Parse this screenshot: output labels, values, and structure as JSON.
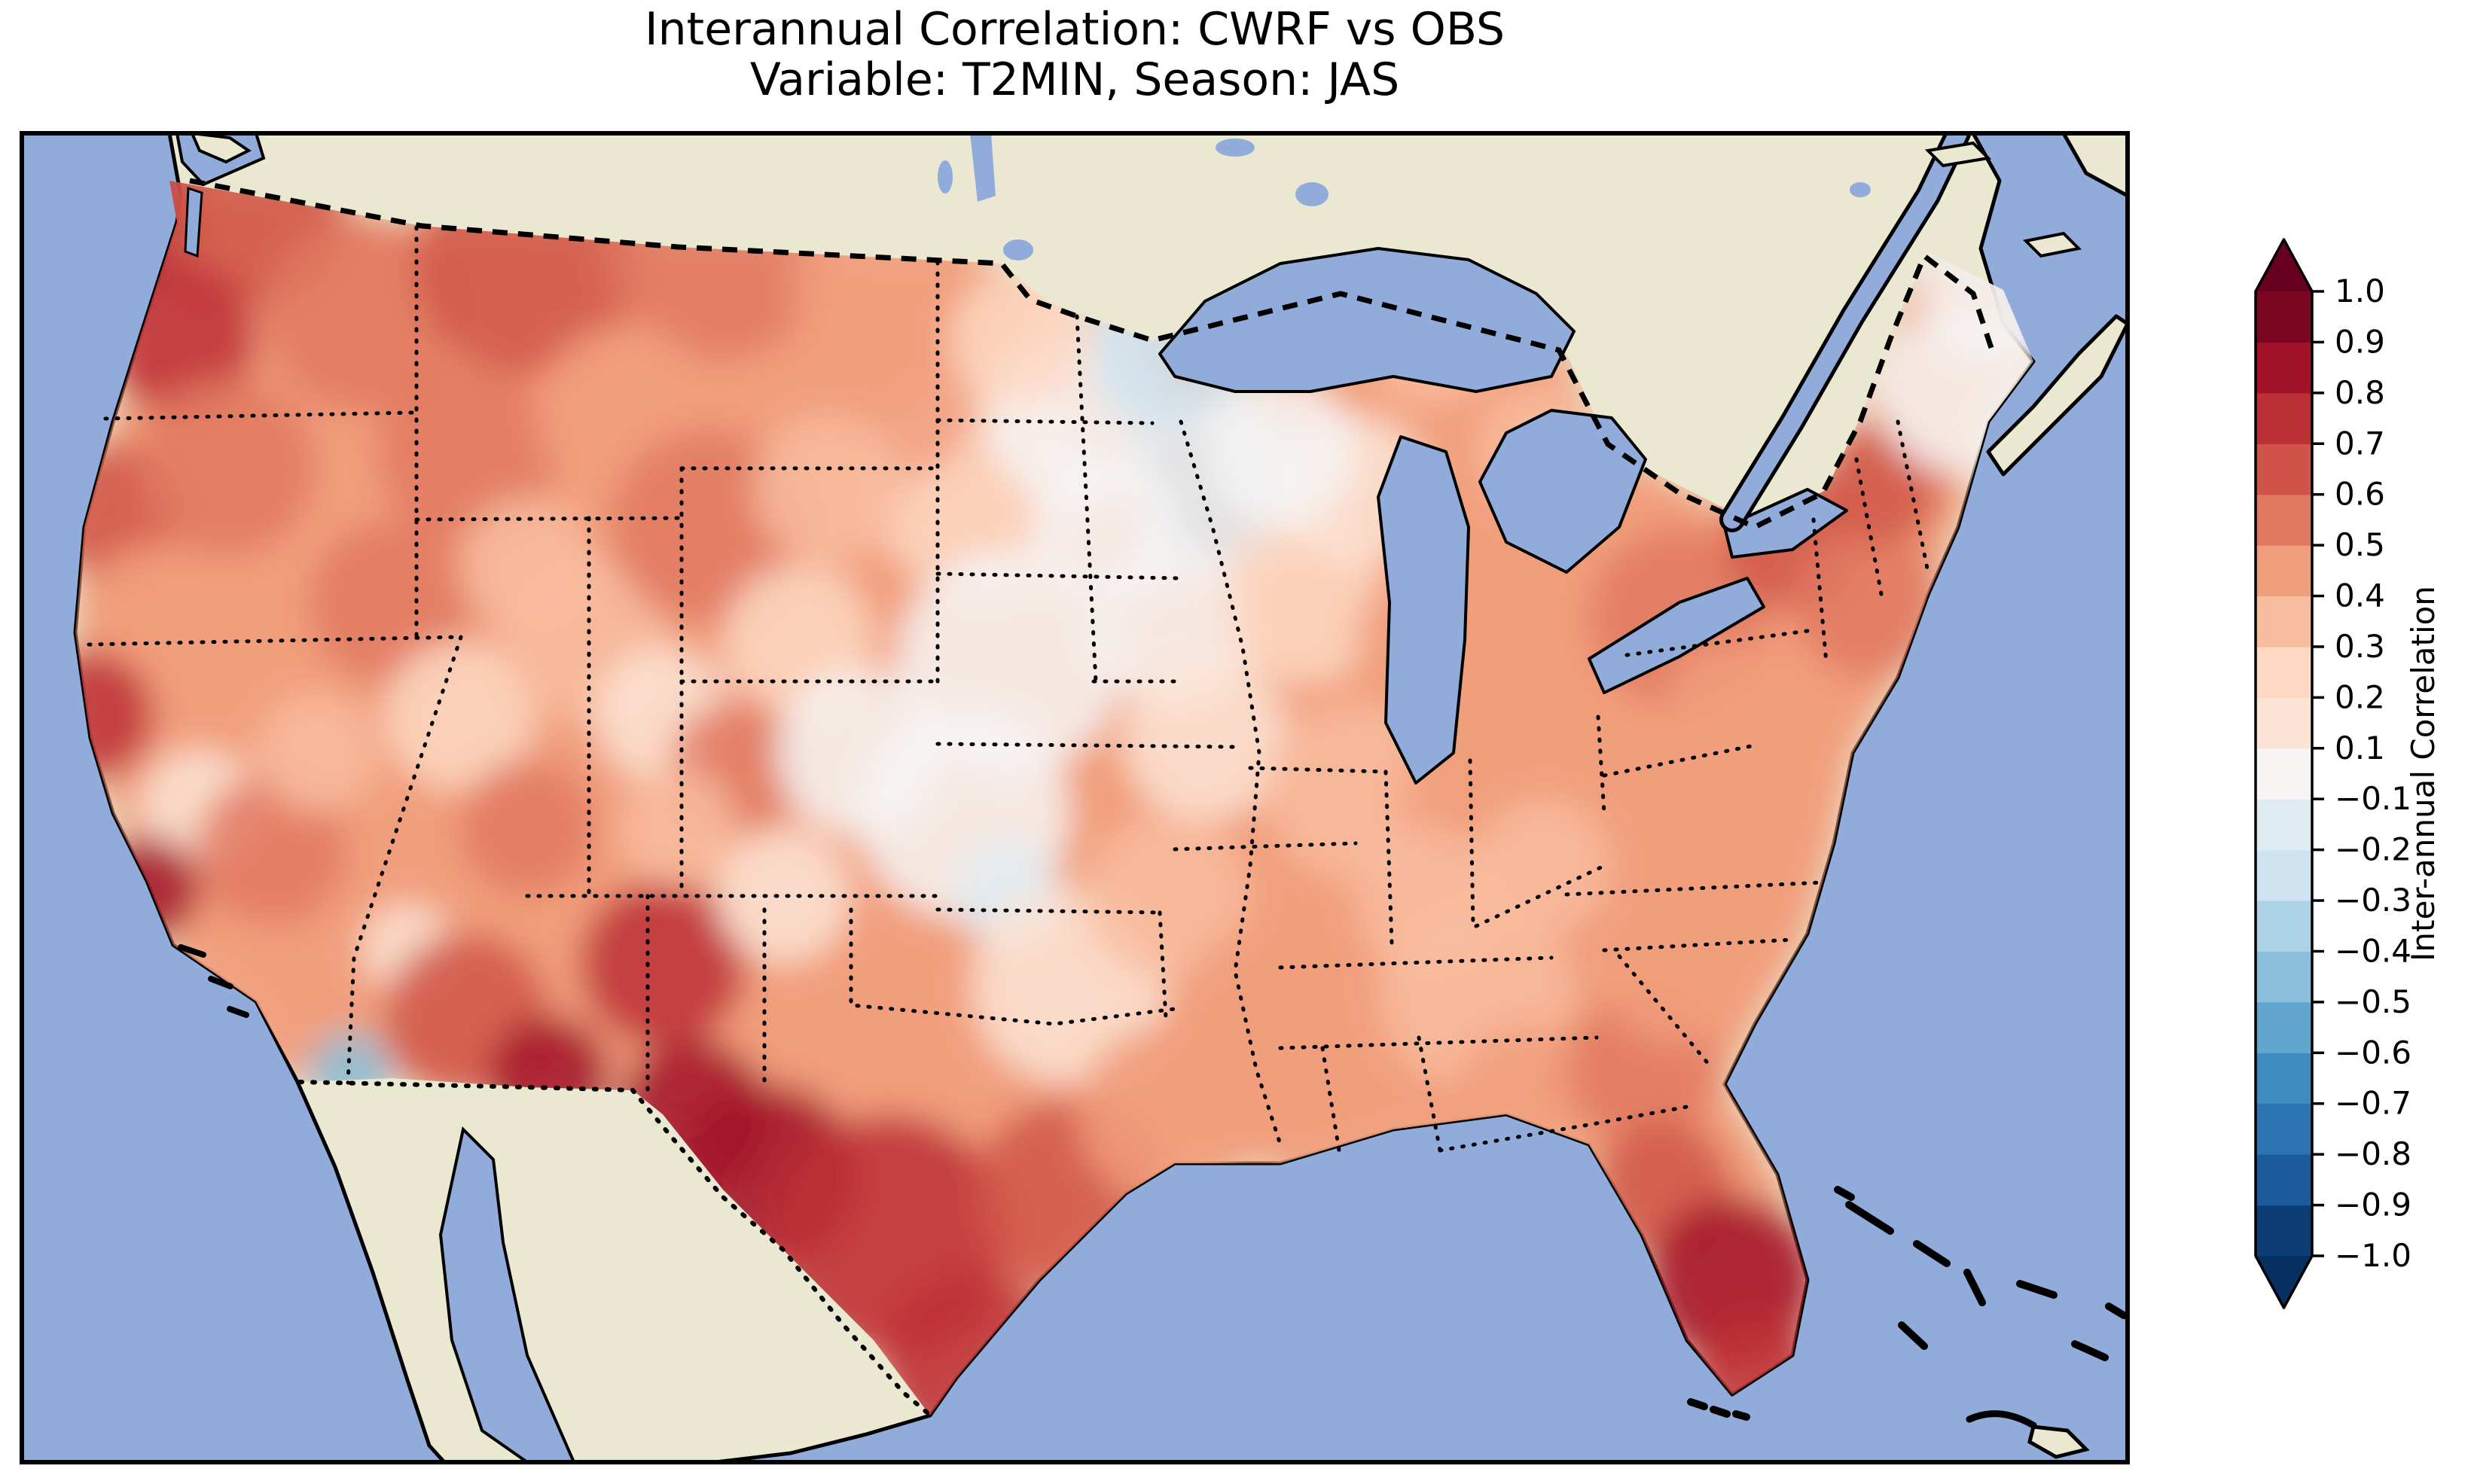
{
  "figure": {
    "title_line1": "Interannual Correlation: CWRF vs OBS",
    "title_line2": "Variable: T2MIN, Season: JAS"
  },
  "colorbar": {
    "label": "Inter-annual Correlation",
    "orientation": "vertical",
    "tick_labels": [
      "1.0",
      "0.9",
      "0.8",
      "0.7",
      "0.6",
      "0.5",
      "0.4",
      "0.3",
      "0.2",
      "0.1",
      "−0.1",
      "−0.2",
      "−0.3",
      "−0.4",
      "−0.5",
      "−0.6",
      "−0.7",
      "−0.8",
      "−0.9",
      "−1.0"
    ],
    "levels": [
      -1.0,
      -0.9,
      -0.8,
      -0.7,
      -0.6,
      -0.5,
      -0.4,
      -0.3,
      -0.2,
      -0.1,
      0.1,
      0.2,
      0.3,
      0.4,
      0.5,
      0.6,
      0.7,
      0.8,
      0.9,
      1.0
    ],
    "segment_colors_low_to_high": [
      "#0c3e75",
      "#1b5b9c",
      "#2c74b3",
      "#3e8cbf",
      "#60a5cd",
      "#8ac0db",
      "#add2e6",
      "#cee3ef",
      "#dfebf2",
      "#f6f5f4",
      "#fbe4d6",
      "#fdd8c3",
      "#f8bc9f",
      "#f19e7c",
      "#e17961",
      "#d05548",
      "#bd2f36",
      "#a21328",
      "#7b0622"
    ],
    "under_color": "#053061",
    "over_color": "#67001f"
  },
  "map": {
    "ocean_color": "#91abdb",
    "land_color": "#eae8d1",
    "coast_color": "#000000",
    "border_styles": {
      "country": "dashed",
      "state": "dotted"
    },
    "field": {
      "variable": "T2MIN",
      "season": "JAS",
      "units": "correlation (-1 to 1)",
      "base_value": 0.4,
      "blobs": [
        [
          165,
          300,
          95,
          0.85
        ],
        [
          330,
          280,
          130,
          0.6
        ],
        [
          240,
          450,
          100,
          0.7
        ],
        [
          150,
          680,
          90,
          0.65
        ],
        [
          300,
          620,
          120,
          0.5
        ],
        [
          480,
          420,
          130,
          0.55
        ],
        [
          700,
          350,
          150,
          0.65
        ],
        [
          950,
          330,
          150,
          0.55
        ],
        [
          1180,
          380,
          130,
          0.4
        ],
        [
          620,
          600,
          120,
          0.5
        ],
        [
          830,
          550,
          120,
          0.45
        ],
        [
          120,
          950,
          85,
          0.7
        ],
        [
          265,
          1075,
          80,
          0.1
        ],
        [
          195,
          1180,
          70,
          0.8
        ],
        [
          360,
          1130,
          100,
          0.55
        ],
        [
          330,
          1330,
          110,
          0.45
        ],
        [
          465,
          1425,
          55,
          -0.45
        ],
        [
          540,
          1260,
          60,
          0.15
        ],
        [
          520,
          800,
          110,
          0.5
        ],
        [
          610,
          950,
          100,
          0.2
        ],
        [
          700,
          1100,
          90,
          0.5
        ],
        [
          780,
          850,
          110,
          0.35
        ],
        [
          880,
          950,
          90,
          0.1
        ],
        [
          620,
          1350,
          110,
          0.6
        ],
        [
          730,
          1430,
          80,
          0.8
        ],
        [
          880,
          1280,
          110,
          0.7
        ],
        [
          920,
          1480,
          100,
          0.8
        ],
        [
          1040,
          1190,
          90,
          0.1
        ],
        [
          940,
          700,
          130,
          0.5
        ],
        [
          1060,
          850,
          100,
          0.2
        ],
        [
          980,
          1020,
          90,
          0.55
        ],
        [
          1140,
          1000,
          110,
          0.05
        ],
        [
          1300,
          640,
          150,
          0.25
        ],
        [
          1180,
          520,
          120,
          0.4
        ],
        [
          1430,
          550,
          120,
          0.05
        ],
        [
          1560,
          470,
          110,
          -0.3
        ],
        [
          1620,
          650,
          120,
          -0.15
        ],
        [
          1560,
          830,
          110,
          -0.05
        ],
        [
          1340,
          880,
          150,
          0.05
        ],
        [
          1280,
          1080,
          140,
          0.05
        ],
        [
          1340,
          1190,
          70,
          -0.15
        ],
        [
          1420,
          1310,
          130,
          0.1
        ],
        [
          1550,
          1190,
          110,
          0.3
        ],
        [
          1020,
          1560,
          120,
          0.85
        ],
        [
          1180,
          1640,
          160,
          0.75
        ],
        [
          1290,
          1810,
          120,
          0.7
        ],
        [
          1420,
          1590,
          130,
          0.6
        ],
        [
          1550,
          1480,
          120,
          0.45
        ],
        [
          1600,
          980,
          110,
          0.15
        ],
        [
          1730,
          800,
          110,
          0.2
        ],
        [
          1800,
          1050,
          120,
          0.35
        ],
        [
          1900,
          850,
          100,
          0.45
        ],
        [
          1990,
          1070,
          130,
          0.4
        ],
        [
          2120,
          950,
          110,
          0.45
        ],
        [
          1700,
          1350,
          130,
          0.4
        ],
        [
          1820,
          1520,
          130,
          0.45
        ],
        [
          1960,
          1320,
          130,
          0.35
        ],
        [
          2040,
          1480,
          120,
          0.45
        ],
        [
          2180,
          1420,
          100,
          0.55
        ],
        [
          2230,
          1280,
          110,
          0.45
        ],
        [
          2210,
          1580,
          90,
          0.65
        ],
        [
          2300,
          1700,
          110,
          0.8
        ],
        [
          2330,
          1820,
          80,
          0.75
        ],
        [
          2160,
          1120,
          110,
          0.4
        ],
        [
          2300,
          1050,
          100,
          0.45
        ],
        [
          2230,
          820,
          120,
          0.5
        ],
        [
          2380,
          720,
          90,
          0.65
        ],
        [
          2300,
          940,
          90,
          0.4
        ],
        [
          2480,
          800,
          100,
          0.5
        ],
        [
          2500,
          640,
          80,
          0.6
        ],
        [
          2600,
          520,
          110,
          0.05
        ],
        [
          2650,
          380,
          100,
          0.0
        ],
        [
          1800,
          650,
          100,
          0.1
        ],
        [
          1700,
          600,
          100,
          0.05
        ],
        [
          1900,
          450,
          90,
          0.3
        ],
        [
          2050,
          600,
          90,
          0.35
        ],
        [
          1470,
          700,
          100,
          -0.1
        ],
        [
          1350,
          450,
          90,
          0.2
        ],
        [
          1100,
          650,
          100,
          0.35
        ],
        [
          900,
          1100,
          80,
          0.3
        ],
        [
          420,
          1000,
          80,
          0.3
        ],
        [
          200,
          800,
          80,
          0.4
        ],
        [
          700,
          750,
          90,
          0.3
        ],
        [
          1900,
          1200,
          100,
          0.35
        ],
        [
          2050,
          1150,
          90,
          0.3
        ]
      ]
    }
  }
}
